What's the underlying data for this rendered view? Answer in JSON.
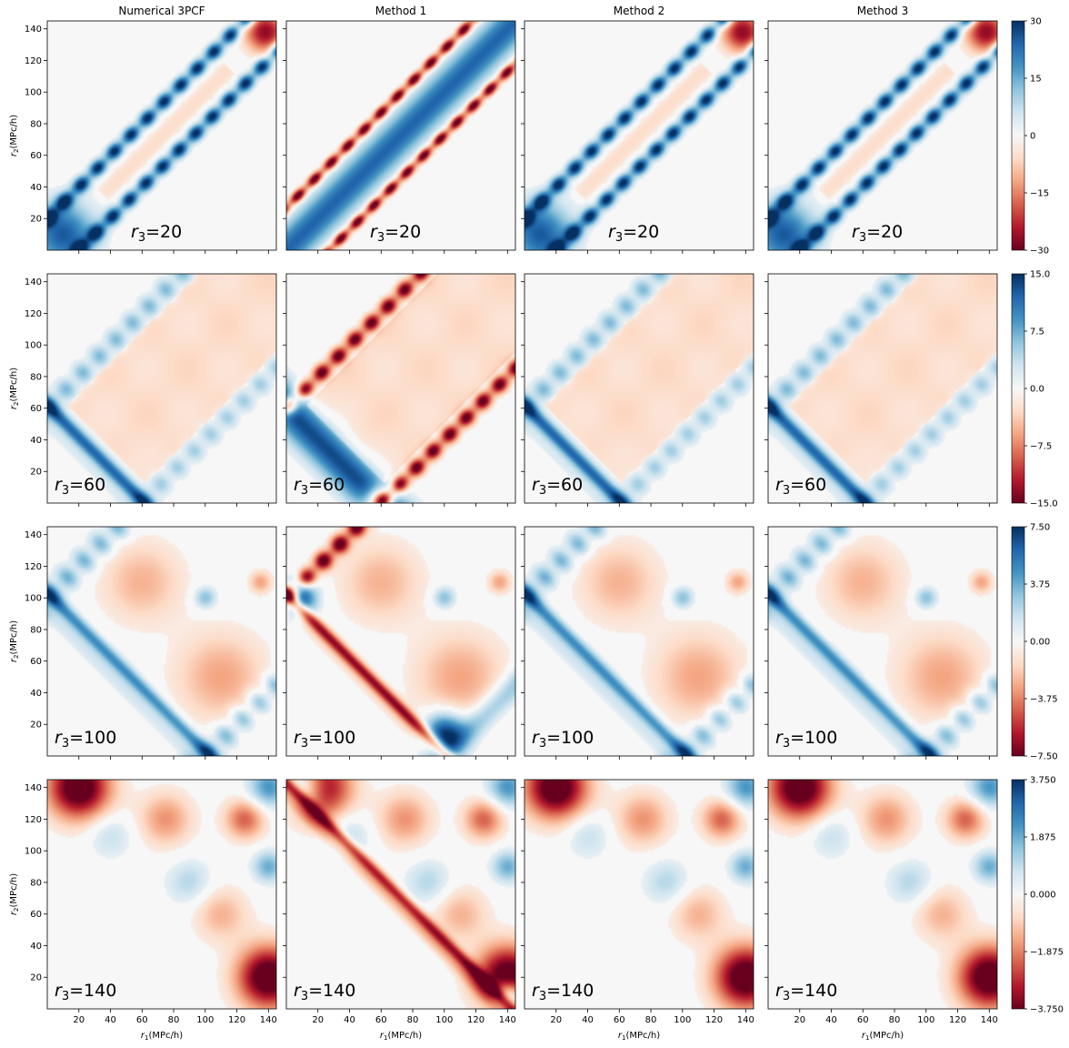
{
  "chart_data": {
    "type": "heatmap",
    "column_titles": [
      "Numerical 3PCF",
      "Method 1",
      "Method 2",
      "Method 3"
    ],
    "xlabel_main": "r",
    "xlabel_sub": "1",
    "xlabel_unit": "(MPc/h)",
    "ylabel_main": "r",
    "ylabel_sub": "2",
    "ylabel_unit": "(MPc/h)",
    "xlim": [
      0,
      145
    ],
    "ylim": [
      0,
      145
    ],
    "xticks": [
      20,
      40,
      60,
      80,
      100,
      120,
      140
    ],
    "yticks": [
      20,
      40,
      60,
      80,
      100,
      120,
      140
    ],
    "panel_label_main": "r",
    "panel_label_sub": "3",
    "colormap": "RdBu",
    "colormap_stops": [
      "#67001f",
      "#b2182b",
      "#d6604d",
      "#f4a582",
      "#fddbc7",
      "#f7f7f7",
      "#d1e5f0",
      "#92c5de",
      "#4393c3",
      "#2166ac",
      "#053061"
    ],
    "rows": [
      {
        "r3": 20,
        "r3_label": "=20",
        "vmin": -30,
        "vmax": 30,
        "colorbar_ticks": [
          "30",
          "15",
          "0",
          "−15",
          "−30"
        ]
      },
      {
        "r3": 60,
        "r3_label": "=60",
        "vmin": -15,
        "vmax": 15,
        "colorbar_ticks": [
          "15.0",
          "7.5",
          "0.0",
          "−7.5",
          "−15.0"
        ]
      },
      {
        "r3": 100,
        "r3_label": "=100",
        "vmin": -7.5,
        "vmax": 7.5,
        "colorbar_ticks": [
          "7.50",
          "3.75",
          "0.00",
          "−3.75",
          "−7.50"
        ]
      },
      {
        "r3": 140,
        "r3_label": "=140",
        "vmin": -3.75,
        "vmax": 3.75,
        "colorbar_ticks": [
          "3.750",
          "1.875",
          "0.000",
          "−1.875",
          "−3.750"
        ]
      }
    ]
  }
}
